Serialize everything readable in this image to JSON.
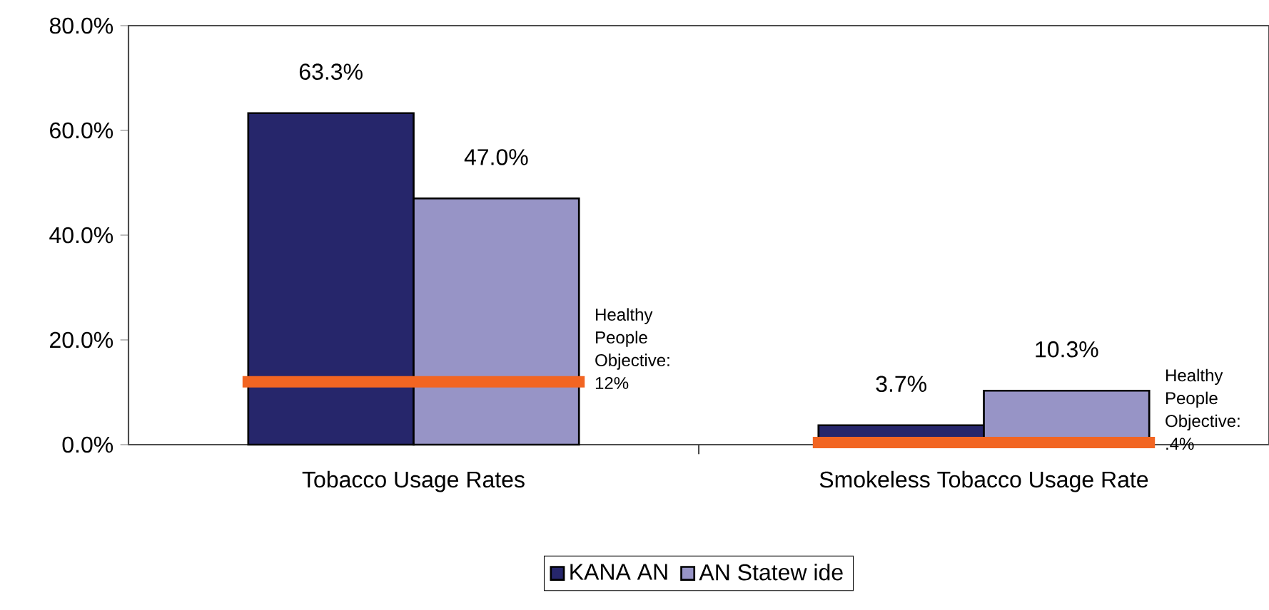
{
  "chart_data": {
    "type": "bar",
    "categories": [
      "Tobacco Usage Rates",
      "Smokeless Tobacco Usage Rate"
    ],
    "series": [
      {
        "name": "KANA AN",
        "color": "#26266b",
        "values": [
          63.3,
          3.7
        ],
        "value_labels": [
          "63.3%",
          "3.7%"
        ]
      },
      {
        "name": "AN Statew ide",
        "color": "#9794c6",
        "values": [
          47.0,
          10.3
        ],
        "value_labels": [
          "47.0%",
          "10.3%"
        ]
      }
    ],
    "ref_lines": [
      {
        "axis": "y",
        "value": 12,
        "label": "Healthy People Objective: 12%",
        "color": "#f26522"
      },
      {
        "axis": "y",
        "value": 0.4,
        "label": "Healthy People Objective: .4%",
        "color": "#f26522"
      }
    ],
    "ylim": [
      0,
      80
    ],
    "yticks": [
      {
        "value": 0,
        "label": "0.0%"
      },
      {
        "value": 20,
        "label": "20.0%"
      },
      {
        "value": 40,
        "label": "40.0%"
      },
      {
        "value": 60,
        "label": "60.0%"
      },
      {
        "value": 80,
        "label": "80.0%"
      }
    ],
    "grid": false,
    "legend": "bottom"
  }
}
